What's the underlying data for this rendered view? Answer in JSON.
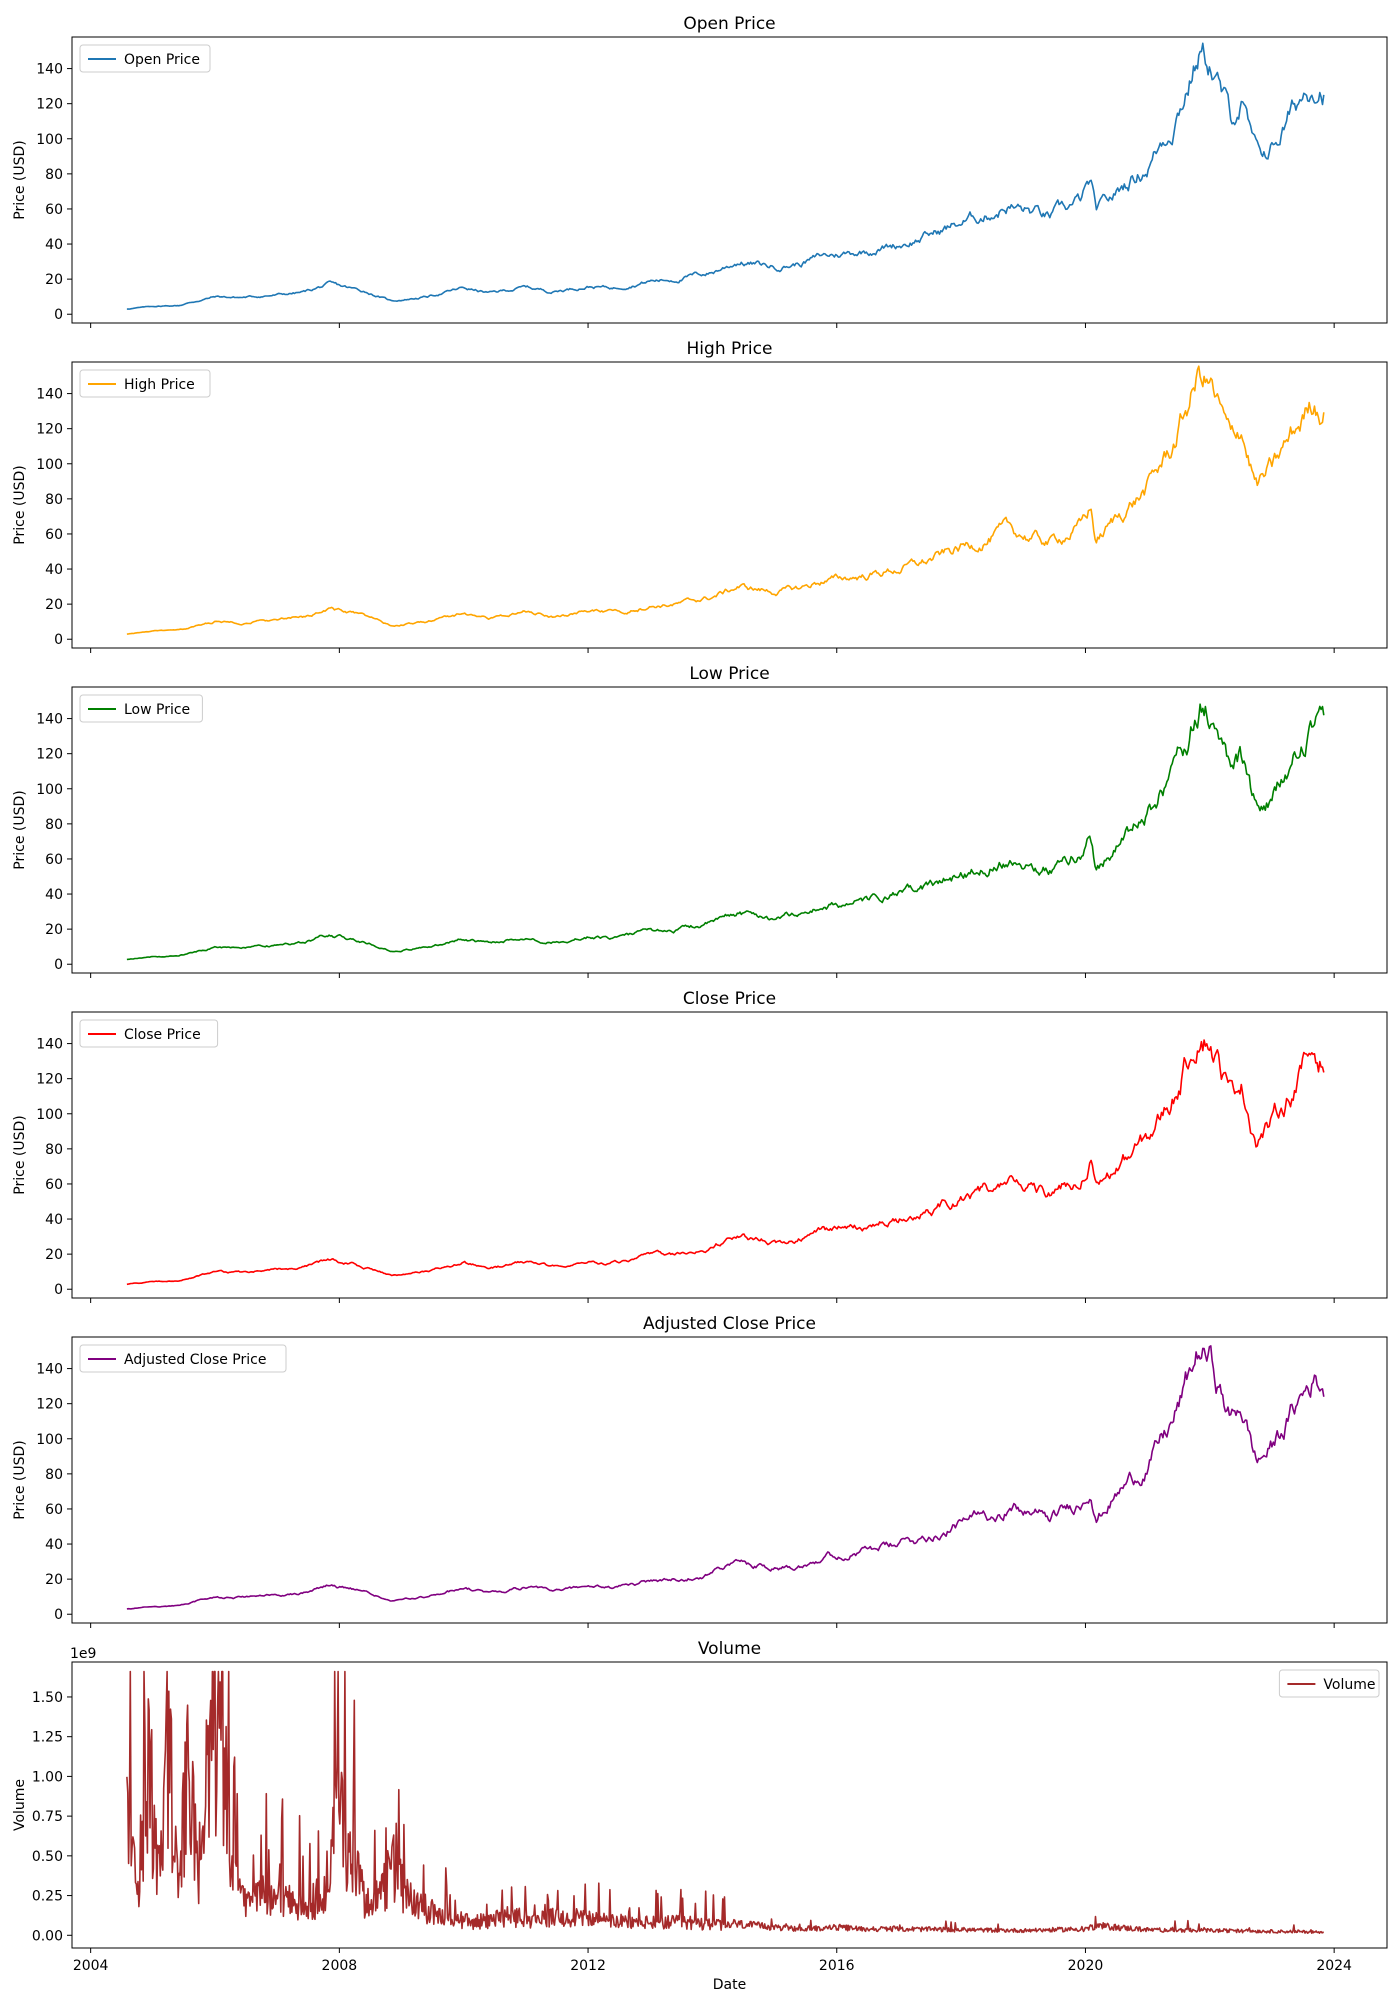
{
  "chart_data": [
    {
      "type": "line",
      "title": "Open Price",
      "xlabel": "",
      "ylabel": "Price (USD)",
      "legend": {
        "placement": "top-left",
        "entries": [
          "Open Price"
        ]
      },
      "color": "#1f77b4",
      "ylim": [
        -5,
        158
      ],
      "yticks": [
        0,
        20,
        40,
        60,
        80,
        100,
        120,
        140
      ],
      "show_xticklabels": false,
      "series": [
        {
          "name": "Open Price",
          "x": [
            "2004-08",
            "2005-01",
            "2005-06",
            "2006-01",
            "2006-06",
            "2007-01",
            "2007-06",
            "2007-11",
            "2008-06",
            "2008-11",
            "2009-06",
            "2010-01",
            "2010-06",
            "2011-01",
            "2011-06",
            "2012-01",
            "2012-06",
            "2013-01",
            "2013-06",
            "2014-01",
            "2014-06",
            "2015-01",
            "2015-06",
            "2015-10",
            "2016-06",
            "2017-01",
            "2017-06",
            "2018-01",
            "2018-06",
            "2018-10",
            "2019-06",
            "2019-12",
            "2020-02",
            "2020-03",
            "2020-09",
            "2021-01",
            "2021-06",
            "2021-11",
            "2022-01",
            "2022-05",
            "2022-07",
            "2022-10",
            "2023-01",
            "2023-06",
            "2023-09",
            "2023-11"
          ],
          "values": [
            3,
            4.5,
            5,
            10,
            9.5,
            11,
            12.5,
            17,
            13,
            7.5,
            10,
            15,
            12,
            15.5,
            13,
            16,
            15,
            19,
            20,
            24,
            30,
            27,
            29,
            33,
            36,
            40,
            44,
            52,
            57,
            62,
            55,
            64,
            74,
            56,
            75,
            85,
            110,
            150,
            145,
            110,
            120,
            88,
            95,
            120,
            135,
            132
          ]
        }
      ]
    },
    {
      "type": "line",
      "title": "High Price",
      "xlabel": "",
      "ylabel": "Price (USD)",
      "legend": {
        "placement": "top-left",
        "entries": [
          "High Price"
        ]
      },
      "color": "#ffa500",
      "ylim": [
        -5,
        158
      ],
      "yticks": [
        0,
        20,
        40,
        60,
        80,
        100,
        120,
        140
      ],
      "show_xticklabels": false,
      "series": [
        {
          "name": "High Price",
          "x": [
            "2004-08",
            "2005-01",
            "2005-06",
            "2006-01",
            "2006-06",
            "2007-01",
            "2007-06",
            "2007-11",
            "2008-06",
            "2008-11",
            "2009-06",
            "2010-01",
            "2010-06",
            "2011-01",
            "2011-06",
            "2012-01",
            "2012-06",
            "2013-01",
            "2013-06",
            "2014-01",
            "2014-06",
            "2015-01",
            "2015-06",
            "2015-10",
            "2016-06",
            "2017-01",
            "2017-06",
            "2018-01",
            "2018-06",
            "2018-10",
            "2019-06",
            "2019-12",
            "2020-02",
            "2020-03",
            "2020-09",
            "2021-01",
            "2021-06",
            "2021-11",
            "2022-01",
            "2022-05",
            "2022-07",
            "2022-10",
            "2023-01",
            "2023-06",
            "2023-09",
            "2023-11"
          ],
          "values": [
            3,
            4.5,
            5,
            10,
            9.5,
            11,
            12.5,
            17.5,
            13,
            7.5,
            10,
            15,
            12,
            15.5,
            13,
            16,
            15,
            19,
            20,
            24,
            30,
            27,
            29,
            33,
            36,
            40,
            44,
            52,
            57,
            62,
            55,
            64,
            75,
            56,
            75,
            86,
            111,
            151,
            146,
            111,
            121,
            88,
            96,
            121,
            136,
            133
          ]
        }
      ]
    },
    {
      "type": "line",
      "title": "Low Price",
      "xlabel": "",
      "ylabel": "Price (USD)",
      "legend": {
        "placement": "top-left",
        "entries": [
          "Low Price"
        ]
      },
      "color": "#008000",
      "ylim": [
        -5,
        158
      ],
      "yticks": [
        0,
        20,
        40,
        60,
        80,
        100,
        120,
        140
      ],
      "show_xticklabels": false,
      "series": [
        {
          "name": "Low Price",
          "x": [
            "2004-08",
            "2005-01",
            "2005-06",
            "2006-01",
            "2006-06",
            "2007-01",
            "2007-06",
            "2007-11",
            "2008-06",
            "2008-11",
            "2009-06",
            "2010-01",
            "2010-06",
            "2011-01",
            "2011-06",
            "2012-01",
            "2012-06",
            "2013-01",
            "2013-06",
            "2014-01",
            "2014-06",
            "2015-01",
            "2015-06",
            "2015-10",
            "2016-06",
            "2017-01",
            "2017-06",
            "2018-01",
            "2018-06",
            "2018-10",
            "2019-06",
            "2019-12",
            "2020-02",
            "2020-03",
            "2020-09",
            "2021-01",
            "2021-06",
            "2021-11",
            "2022-01",
            "2022-05",
            "2022-07",
            "2022-10",
            "2023-01",
            "2023-06",
            "2023-09",
            "2023-11"
          ],
          "values": [
            2.8,
            4.3,
            4.8,
            9.8,
            9.3,
            10.8,
            12.3,
            16.8,
            12.8,
            7.3,
            9.8,
            14.8,
            11.8,
            15.2,
            12.8,
            15.8,
            14.8,
            18.7,
            19.7,
            23.6,
            29.5,
            26.6,
            28.6,
            32.5,
            35.5,
            39.5,
            43.5,
            51.3,
            56.3,
            61.2,
            54.3,
            63.2,
            73,
            55,
            74,
            84,
            108.5,
            148.5,
            143.5,
            108.5,
            118.5,
            86.5,
            93.5,
            118.5,
            133.5,
            130.5
          ]
        }
      ]
    },
    {
      "type": "line",
      "title": "Close Price",
      "xlabel": "",
      "ylabel": "Price (USD)",
      "legend": {
        "placement": "top-left",
        "entries": [
          "Close Price"
        ]
      },
      "color": "#ff0000",
      "ylim": [
        -5,
        158
      ],
      "yticks": [
        0,
        20,
        40,
        60,
        80,
        100,
        120,
        140
      ],
      "show_xticklabels": false,
      "series": [
        {
          "name": "Close Price",
          "x": [
            "2004-08",
            "2005-01",
            "2005-06",
            "2006-01",
            "2006-06",
            "2007-01",
            "2007-06",
            "2007-11",
            "2008-06",
            "2008-11",
            "2009-06",
            "2010-01",
            "2010-06",
            "2011-01",
            "2011-06",
            "2012-01",
            "2012-06",
            "2013-01",
            "2013-06",
            "2014-01",
            "2014-06",
            "2015-01",
            "2015-06",
            "2015-10",
            "2016-06",
            "2017-01",
            "2017-06",
            "2018-01",
            "2018-06",
            "2018-10",
            "2019-06",
            "2019-12",
            "2020-02",
            "2020-03",
            "2020-09",
            "2021-01",
            "2021-06",
            "2021-11",
            "2022-01",
            "2022-05",
            "2022-07",
            "2022-10",
            "2023-01",
            "2023-06",
            "2023-09",
            "2023-11"
          ],
          "values": [
            2.9,
            4.4,
            4.9,
            9.9,
            9.4,
            10.9,
            12.4,
            17,
            12.9,
            7.4,
            9.9,
            14.9,
            11.9,
            15.3,
            12.9,
            15.9,
            14.9,
            18.8,
            19.8,
            23.8,
            29.8,
            26.8,
            28.8,
            32.8,
            35.8,
            39.8,
            43.8,
            51.8,
            56.8,
            61.8,
            54.8,
            63.8,
            74,
            55.5,
            74.5,
            85,
            110,
            150,
            145,
            110,
            120,
            87,
            95,
            120,
            135,
            131
          ]
        }
      ]
    },
    {
      "type": "line",
      "title": "Adjusted Close Price",
      "xlabel": "",
      "ylabel": "Price (USD)",
      "legend": {
        "placement": "top-left",
        "entries": [
          "Adjusted Close Price"
        ]
      },
      "color": "#800080",
      "ylim": [
        -5,
        158
      ],
      "yticks": [
        0,
        20,
        40,
        60,
        80,
        100,
        120,
        140
      ],
      "show_xticklabels": false,
      "series": [
        {
          "name": "Adjusted Close Price",
          "x": [
            "2004-08",
            "2005-01",
            "2005-06",
            "2006-01",
            "2006-06",
            "2007-01",
            "2007-06",
            "2007-11",
            "2008-06",
            "2008-11",
            "2009-06",
            "2010-01",
            "2010-06",
            "2011-01",
            "2011-06",
            "2012-01",
            "2012-06",
            "2013-01",
            "2013-06",
            "2014-01",
            "2014-06",
            "2015-01",
            "2015-06",
            "2015-10",
            "2016-06",
            "2017-01",
            "2017-06",
            "2018-01",
            "2018-06",
            "2018-10",
            "2019-06",
            "2019-12",
            "2020-02",
            "2020-03",
            "2020-09",
            "2021-01",
            "2021-06",
            "2021-11",
            "2022-01",
            "2022-05",
            "2022-07",
            "2022-10",
            "2023-01",
            "2023-06",
            "2023-09",
            "2023-11"
          ],
          "values": [
            2.9,
            4.4,
            4.9,
            9.9,
            9.4,
            10.9,
            12.4,
            17,
            12.9,
            7.4,
            9.9,
            14.9,
            11.9,
            15.3,
            12.9,
            15.9,
            14.9,
            18.8,
            19.8,
            23.8,
            29.8,
            26.8,
            28.8,
            32.8,
            35.8,
            39.8,
            43.8,
            51.8,
            56.8,
            61.8,
            54.8,
            63.8,
            74,
            55.5,
            74.5,
            85,
            110,
            150,
            145,
            110,
            120,
            87,
            95,
            120,
            135,
            131
          ]
        }
      ]
    },
    {
      "type": "line",
      "title": "Volume",
      "xlabel": "Date",
      "ylabel": "Volume",
      "offset_text": "1e9",
      "legend": {
        "placement": "top-right",
        "entries": [
          "Volume"
        ]
      },
      "color": "#a52a2a",
      "ylim": [
        -0.08,
        1.72
      ],
      "yticks": [
        0.0,
        0.25,
        0.5,
        0.75,
        1.0,
        1.25,
        1.5
      ],
      "ytick_labels": [
        "0.00",
        "0.25",
        "0.50",
        "0.75",
        "1.00",
        "1.25",
        "1.50"
      ],
      "xticks": [
        "2004",
        "2008",
        "2012",
        "2016",
        "2020",
        "2024"
      ],
      "show_xticklabels": true,
      "series": [
        {
          "name": "Volume",
          "x": [
            "2004-08",
            "2004-10",
            "2004-12",
            "2005-02",
            "2005-04",
            "2005-06",
            "2005-08",
            "2005-10",
            "2005-12",
            "2006-02",
            "2006-04",
            "2006-06",
            "2006-09",
            "2007-01",
            "2007-06",
            "2007-10",
            "2008-01",
            "2008-06",
            "2008-09",
            "2008-11",
            "2009-03",
            "2009-09",
            "2010-03",
            "2010-09",
            "2011-03",
            "2011-09",
            "2012-03",
            "2012-09",
            "2013-03",
            "2013-09",
            "2014-01",
            "2014-06",
            "2015-01",
            "2015-06",
            "2016-01",
            "2016-06",
            "2017-01",
            "2018-01",
            "2019-01",
            "2020-01",
            "2020-03",
            "2021-01",
            "2022-01",
            "2023-01",
            "2023-11"
          ],
          "values": [
            0.9,
            0.3,
            1.48,
            0.5,
            1.55,
            0.4,
            1.35,
            0.3,
            1.6,
            1.66,
            0.6,
            0.25,
            0.3,
            0.3,
            0.25,
            0.3,
            0.94,
            0.28,
            0.3,
            0.55,
            0.25,
            0.15,
            0.1,
            0.15,
            0.12,
            0.15,
            0.12,
            0.1,
            0.1,
            0.1,
            0.09,
            0.07,
            0.05,
            0.04,
            0.05,
            0.04,
            0.04,
            0.035,
            0.03,
            0.04,
            0.06,
            0.035,
            0.03,
            0.025,
            0.02
          ]
        }
      ]
    }
  ]
}
